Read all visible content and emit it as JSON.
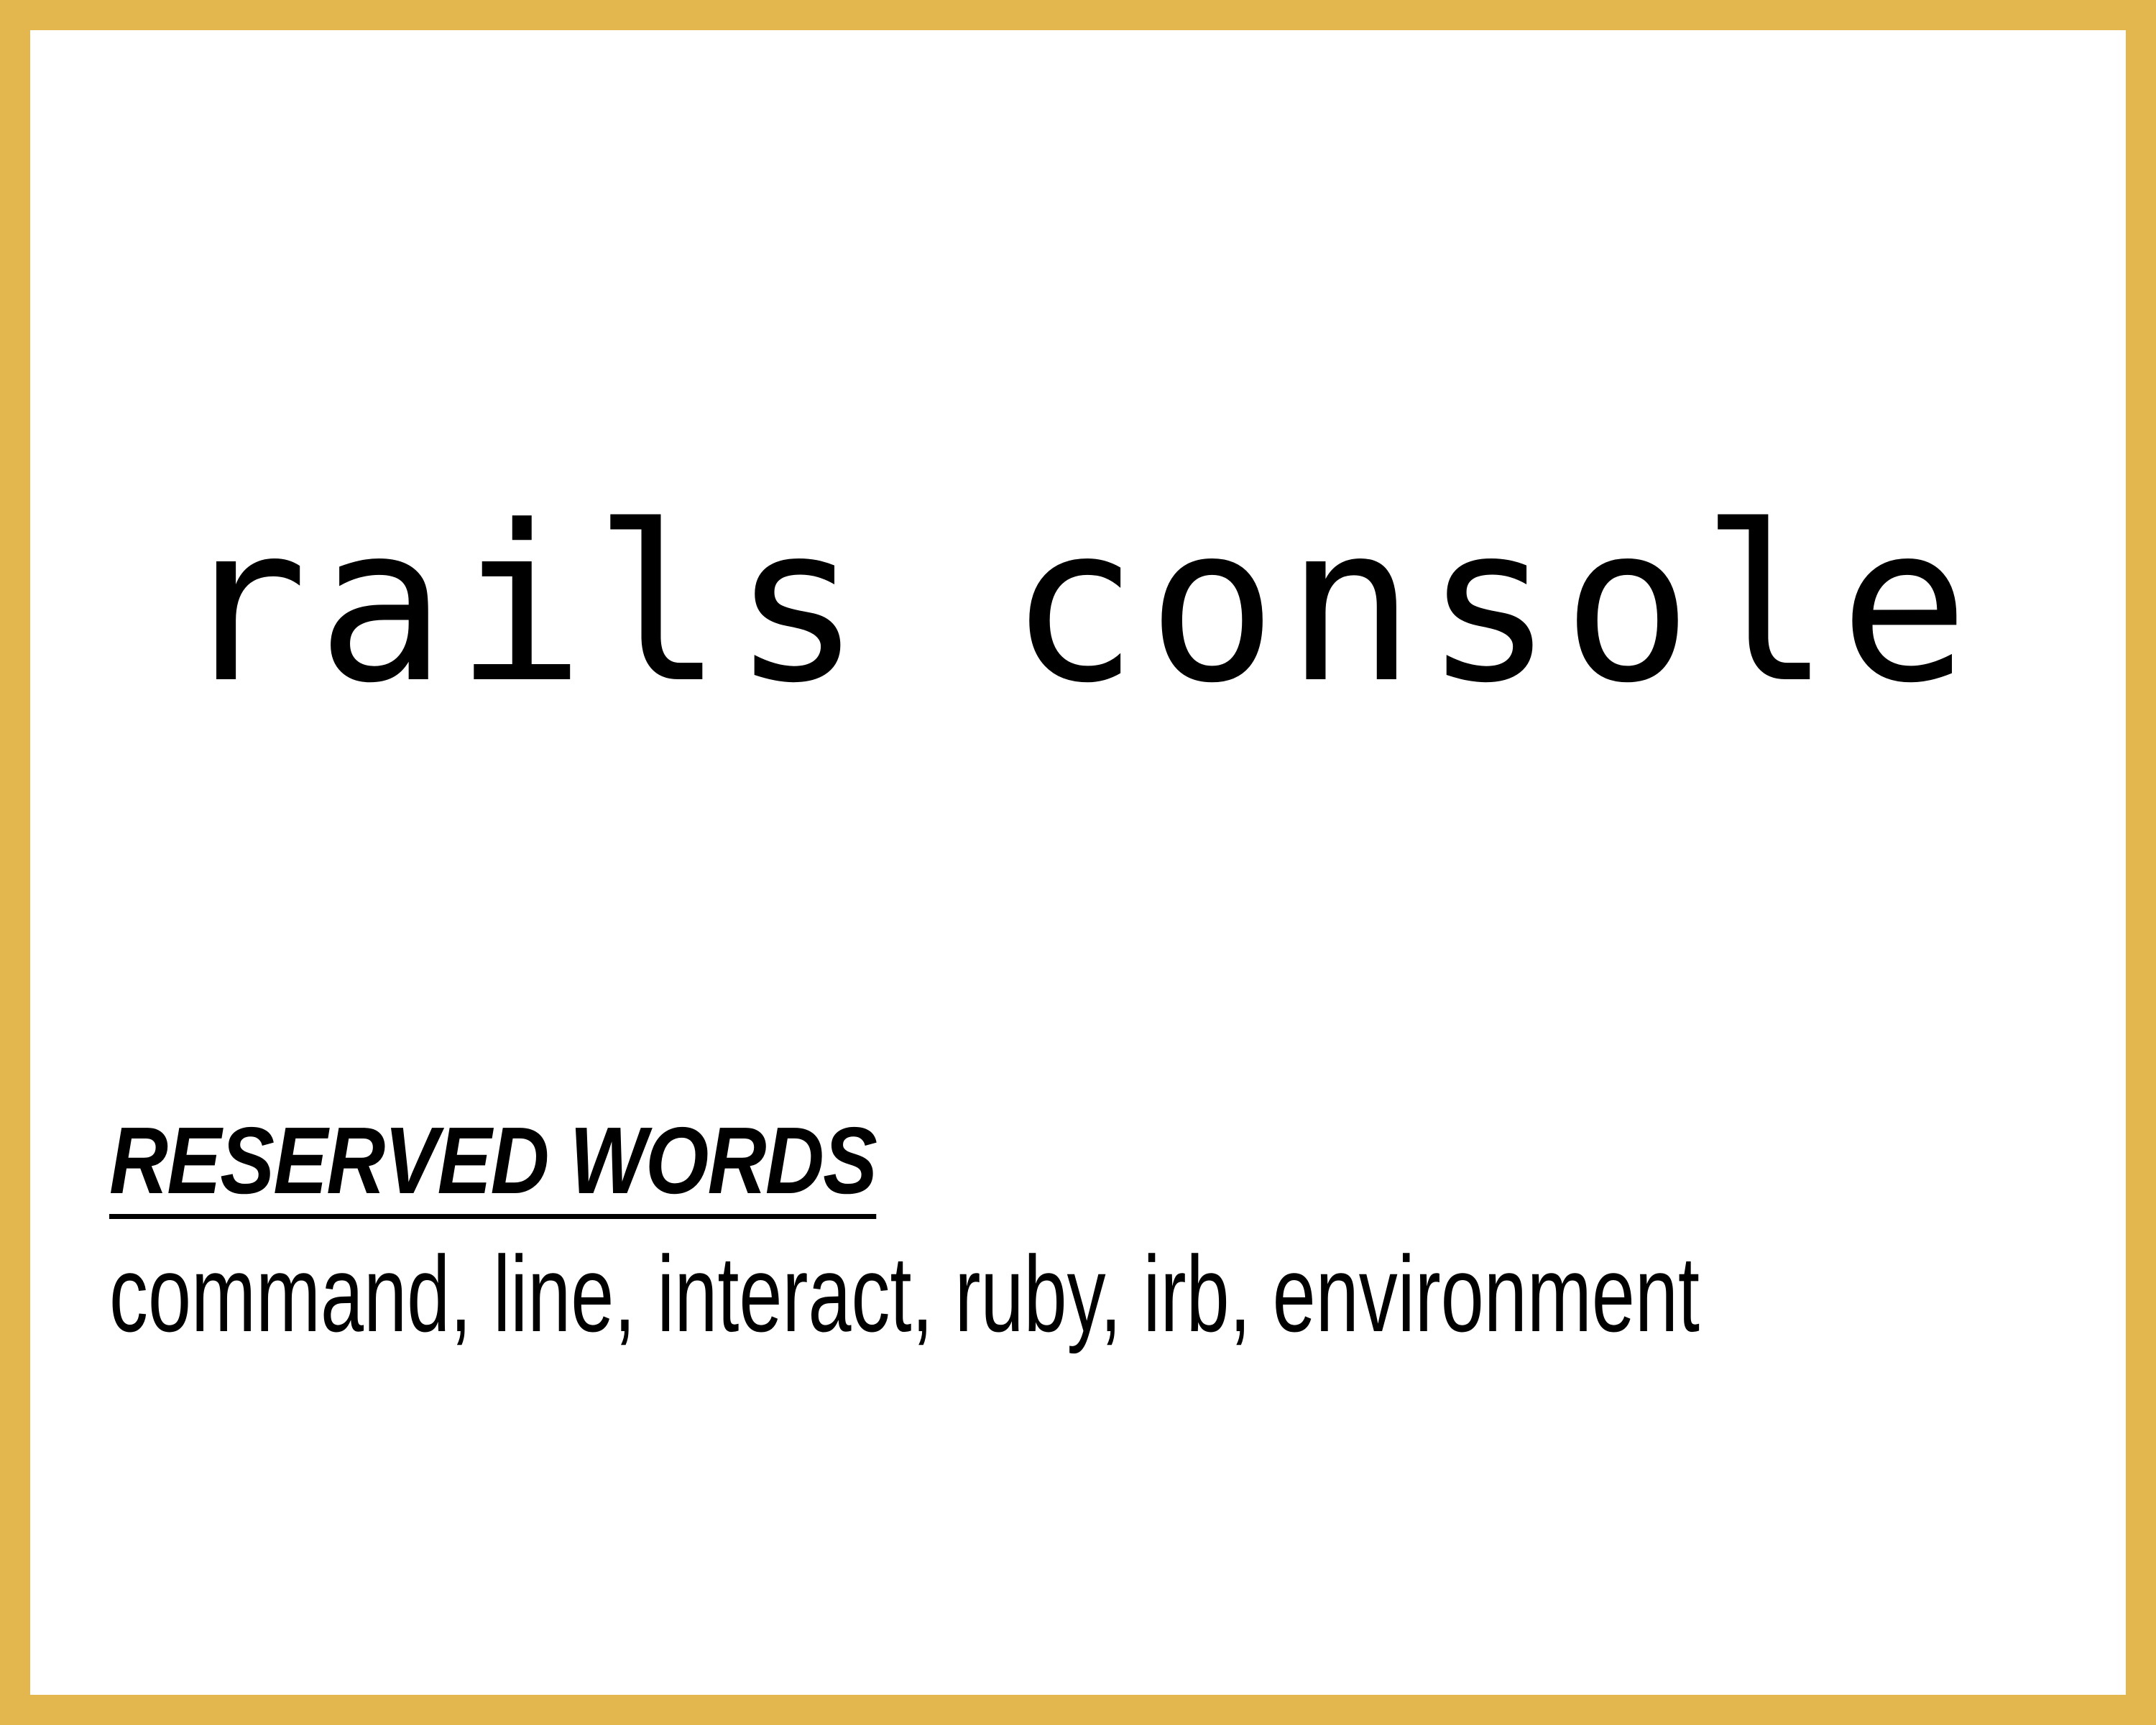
{
  "card": {
    "border_color": "#E3B74D",
    "background_color": "#FFFFFF",
    "text_color": "#000000"
  },
  "command": "rails console",
  "reserved": {
    "heading": "RESERVED WORDS",
    "words": "command, line, interact, ruby, irb, environment"
  }
}
